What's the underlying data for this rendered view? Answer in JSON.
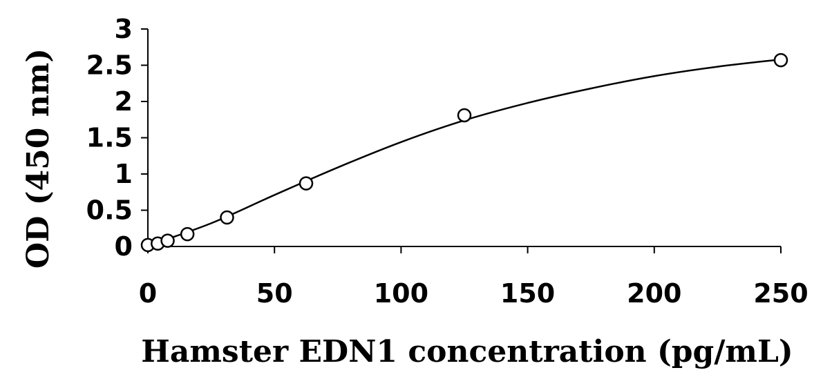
{
  "chart_data": {
    "type": "scatter",
    "title": "",
    "xlabel": "Hamster EDN1 concentration (pg/mL)",
    "ylabel": "OD (450 nm)",
    "xlim": [
      0,
      250
    ],
    "ylim": [
      0,
      3
    ],
    "x_ticks": [
      "0",
      "50",
      "100",
      "150",
      "200",
      "250"
    ],
    "y_ticks": [
      "0",
      "0.5",
      "1",
      "1.5",
      "2",
      "2.5",
      "3"
    ],
    "grid": false,
    "legend": "none",
    "series": [
      {
        "marker": "open-circle",
        "x": [
          0,
          3.9,
          7.8,
          15.6,
          31.25,
          62.5,
          125,
          250
        ],
        "y": [
          0.02,
          0.04,
          0.08,
          0.17,
          0.4,
          0.87,
          1.81,
          2.57
        ]
      }
    ],
    "fit_curve": {
      "x": [
        0,
        25,
        50,
        75,
        100,
        125,
        150,
        175,
        200,
        225,
        250
      ],
      "y": [
        0.01,
        0.32,
        0.71,
        1.09,
        1.44,
        1.74,
        1.98,
        2.18,
        2.35,
        2.48,
        2.58
      ]
    },
    "colors": {
      "axis": "#000000",
      "marker_stroke": "#000000",
      "marker_fill": "#ffffff",
      "curve": "#000000"
    }
  }
}
